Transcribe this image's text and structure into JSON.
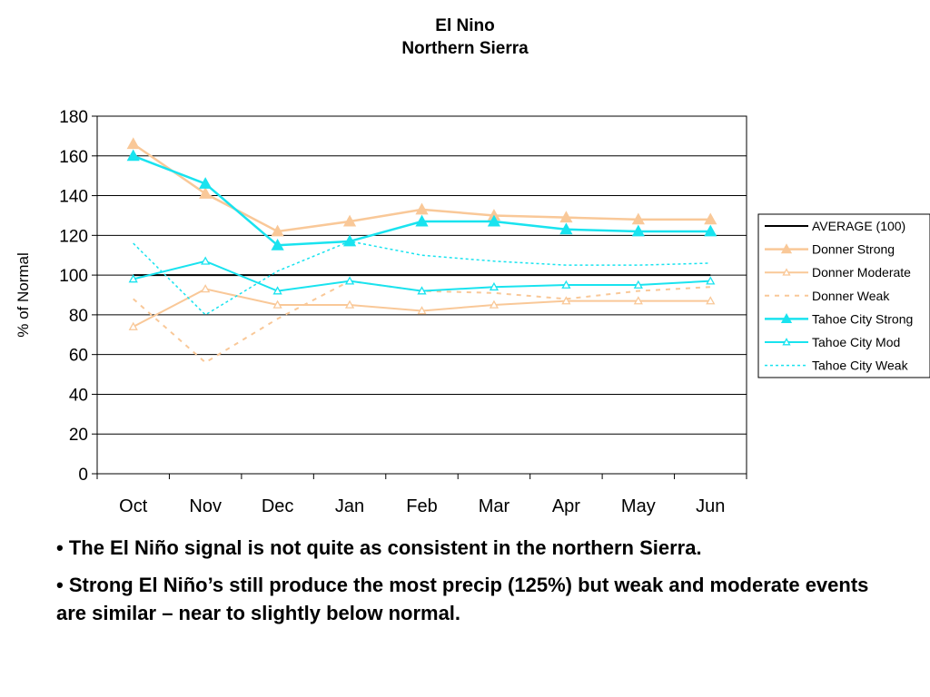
{
  "chart_data": {
    "type": "line",
    "title": "El Nino",
    "subtitle": "Northern Sierra",
    "xlabel": "",
    "ylabel": "% of Normal",
    "categories": [
      "Oct",
      "Nov",
      "Dec",
      "Jan",
      "Feb",
      "Mar",
      "Apr",
      "May",
      "Jun"
    ],
    "ylim": [
      0,
      180
    ],
    "yticks": [
      0,
      20,
      40,
      60,
      80,
      100,
      120,
      140,
      160,
      180
    ],
    "grid": true,
    "legend_position": "right",
    "series": [
      {
        "name": "AVERAGE (100)",
        "values": [
          100,
          100,
          100,
          100,
          100,
          100,
          100,
          100,
          100
        ],
        "color": "#000000",
        "dash": "solid",
        "marker": "none",
        "width": 2
      },
      {
        "name": "Donner Strong",
        "values": [
          166,
          141,
          122,
          127,
          133,
          130,
          129,
          128,
          128
        ],
        "color": "#f9c898",
        "dash": "solid",
        "marker": "filled-triangle",
        "width": 2.5
      },
      {
        "name": "Donner Moderate",
        "values": [
          74,
          93,
          85,
          85,
          82,
          85,
          87,
          87,
          87
        ],
        "color": "#f9c898",
        "dash": "solid",
        "marker": "open-triangle",
        "width": 2
      },
      {
        "name": "Donner Weak",
        "values": [
          88,
          56,
          78,
          97,
          92,
          91,
          88,
          92,
          94
        ],
        "color": "#f9c898",
        "dash": "dashed",
        "marker": "none",
        "width": 2
      },
      {
        "name": "Tahoe City Strong",
        "values": [
          160,
          146,
          115,
          117,
          127,
          127,
          123,
          122,
          122
        ],
        "color": "#19e3ef",
        "dash": "solid",
        "marker": "filled-triangle",
        "width": 2.5
      },
      {
        "name": "Tahoe City Mod",
        "values": [
          98,
          107,
          92,
          97,
          92,
          94,
          95,
          95,
          97
        ],
        "color": "#19e3ef",
        "dash": "solid",
        "marker": "open-triangle",
        "width": 2
      },
      {
        "name": "Tahoe City Weak",
        "values": [
          116,
          80,
          102,
          117,
          110,
          107,
          105,
          105,
          106
        ],
        "color": "#19e3ef",
        "dash": "dotted",
        "marker": "none",
        "width": 1.5
      }
    ]
  },
  "bullets": [
    "• The El Niño signal is not quite as consistent in the northern Sierra.",
    "• Strong El Niño’s still produce the most precip (125%) but weak and moderate events are similar – near to slightly below normal."
  ]
}
